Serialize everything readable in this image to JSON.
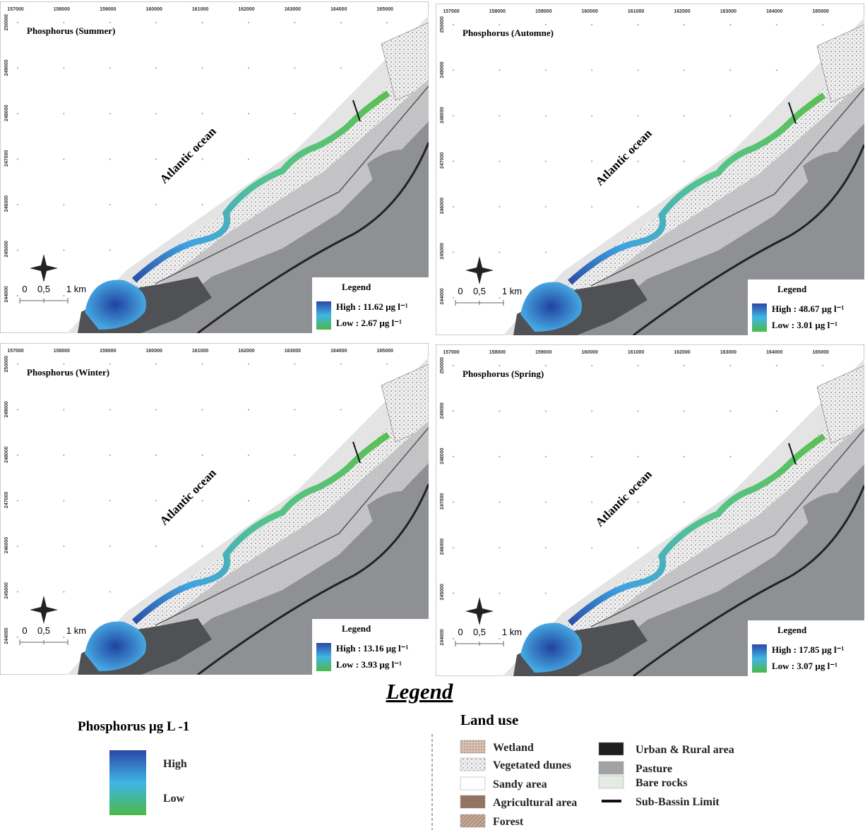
{
  "panels": [
    {
      "title": "Phosphorus (Summer)",
      "ocean_label": "Atlantic ocean",
      "legend_title": "Legend",
      "high": "High : 11.62 µg l⁻¹",
      "low": "Low :  2.67 µg l⁻¹"
    },
    {
      "title": "Phosphorus (Automne)",
      "ocean_label": "Atlantic ocean",
      "legend_title": "Legend",
      "high": "High : 48.67 µg l⁻¹",
      "low": "Low :  3.01 µg l⁻¹"
    },
    {
      "title": "Phosphorus (Winter)",
      "ocean_label": "Atlantic ocean",
      "legend_title": "Legend",
      "high": "High : 13.16 µg l⁻¹",
      "low": "Low :  3.93 µg l⁻¹"
    },
    {
      "title": "Phosphorus (Spring)",
      "ocean_label": "Atlantic ocean",
      "legend_title": "Legend",
      "high": "High : 17.85 µg l⁻¹",
      "low": "Low :  3.07 µg l⁻¹"
    }
  ],
  "axes": {
    "x_ticks": [
      "157000",
      "158000",
      "159000",
      "160000",
      "161000",
      "162000",
      "163000",
      "164000",
      "165000"
    ],
    "y_ticks": [
      "244000",
      "245000",
      "246000",
      "247000",
      "248000",
      "249000",
      "250000"
    ]
  },
  "scale_bar": {
    "labels": [
      "0",
      "0,5",
      "1 km"
    ]
  },
  "legend": {
    "title": "Legend",
    "phosphorus": {
      "title": "Phosphorus µg L -1",
      "high": "High",
      "low": "Low"
    },
    "land_use": {
      "title": "Land use",
      "items": [
        "Wetland",
        "Vegetated dunes",
        "Sandy area",
        "Agricultural area",
        "Forest",
        "Urban & Rural area",
        "Pasture",
        "Bare rocks",
        "Sub-Bassin Limit"
      ]
    }
  }
}
